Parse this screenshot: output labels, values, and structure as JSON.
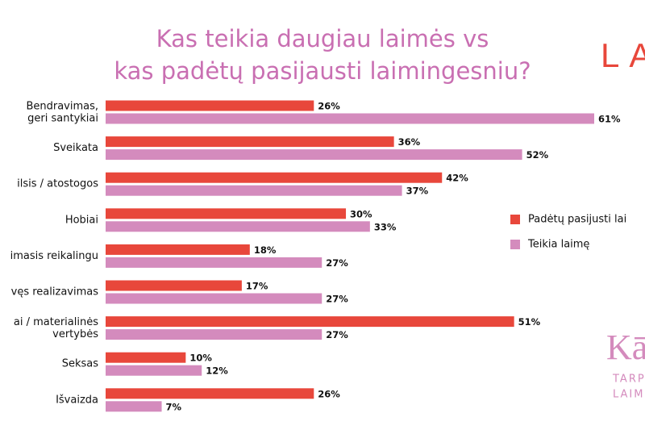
{
  "chart_data": {
    "type": "bar",
    "title": "Kas teikia daugiau laimės vs\nkas padėtų pasijausti laimingesniu?",
    "categories": [
      "Bendravimas,\ngeri santykiai",
      "Sveikata",
      "ilsis / atostogos",
      "Hobiai",
      "imasis reikalingu",
      "vęs realizavimas",
      "ai / materialinės\nvertybės",
      "Seksas",
      "Išvaizda"
    ],
    "series": [
      {
        "name": "Padėtų pasijusti lai",
        "color": "#e8473b",
        "values": [
          26,
          36,
          42,
          30,
          18,
          17,
          51,
          10,
          26
        ],
        "value_labels": [
          "26%",
          "36%",
          "42%",
          "30%",
          "18%",
          "17%",
          "51%",
          "10%",
          "26%"
        ]
      },
      {
        "name": "Teikia laimę",
        "color": "#d48bbd",
        "values": [
          61,
          52,
          37,
          33,
          27,
          27,
          27,
          12,
          7
        ],
        "value_labels": [
          "61%",
          "52%",
          "37%",
          "33%",
          "27%",
          "27%",
          "27%",
          "12%",
          "7%"
        ]
      }
    ],
    "legend": "right",
    "brand": "LA",
    "logo": [
      "Kā",
      "TARP",
      "LAIMĖ"
    ]
  }
}
